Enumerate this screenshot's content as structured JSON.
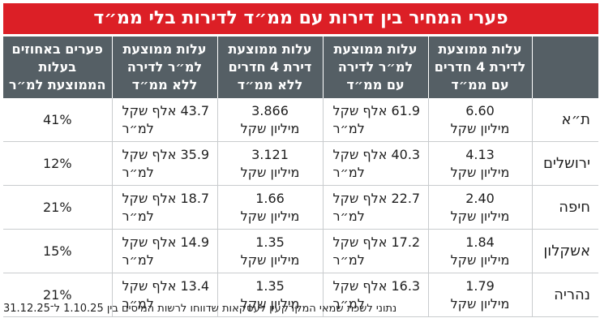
{
  "chart_data": {
    "type": "table",
    "title": "פערי המחיר בין דירות עם ממ״ד לדירות בלי ממ״ד",
    "columns": [
      "",
      "עלות ממוצעת לדירת 4 חדרים עם ממ״ד",
      "עלות ממוצעת למ״ר לדירה עם ממ״ד",
      "עלות ממוצעת דירת 4 חדרים ללא ממ״ד",
      "עלות ממוצעת למ״ר לדירה ללא ממ״ד",
      "פערים באחוזים בעלות הממוצעת למ״ר"
    ],
    "rows": [
      {
        "city": "ת״א",
        "v1": "6.60",
        "v1_unit": "מיליון שקל",
        "v2": "61.9 אלף שקל",
        "v2_unit": "למ״ר",
        "v3": "3.866",
        "v3_unit": "מיליון שקל",
        "v4": "43.7 אלף שקל",
        "v4_unit": "למ״ר",
        "gap": "41%"
      },
      {
        "city": "ירושלים",
        "v1": "4.13",
        "v1_unit": "מיליון שקל",
        "v2": "40.3 אלף שקל",
        "v2_unit": "למ״ר",
        "v3": "3.121",
        "v3_unit": "מיליון שקל",
        "v4": "35.9 אלף שקל",
        "v4_unit": "למ״ר",
        "gap": "12%"
      },
      {
        "city": "חיפה",
        "v1": "2.40",
        "v1_unit": "מיליון שקל",
        "v2": "22.7 אלף שקל",
        "v2_unit": "למ״ר",
        "v3": "1.66",
        "v3_unit": "מיליון שקל",
        "v4": "18.7 אלף שקל",
        "v4_unit": "למ״ר",
        "gap": "21%"
      },
      {
        "city": "אשקלון",
        "v1": "1.84",
        "v1_unit": "מיליון שקל",
        "v2": "17.2 אלף שקל",
        "v2_unit": "למ״ר",
        "v3": "1.35",
        "v3_unit": "מיליון שקל",
        "v4": "14.9 אלף שקל",
        "v4_unit": "למ״ר",
        "gap": "15%"
      },
      {
        "city": "נהריה",
        "v1": "1.79",
        "v1_unit": "מיליון שקל",
        "v2": "16.3 אלף שקל",
        "v2_unit": "למ״ר",
        "v3": "1.35",
        "v3_unit": "מיליון שקל",
        "v4": "13.4 אלף שקל",
        "v4_unit": "למ״ר",
        "gap": "21%"
      }
    ],
    "note": "נתוני לשכת שמאי המקרקעין לעסקאות שדווחו לרשות המיסים בין 1.10.25 ל־31.12.25",
    "colors": {
      "title_bg": "#dc1f26",
      "header_bg": "#555f65",
      "grid": "#c9ccce"
    }
  }
}
